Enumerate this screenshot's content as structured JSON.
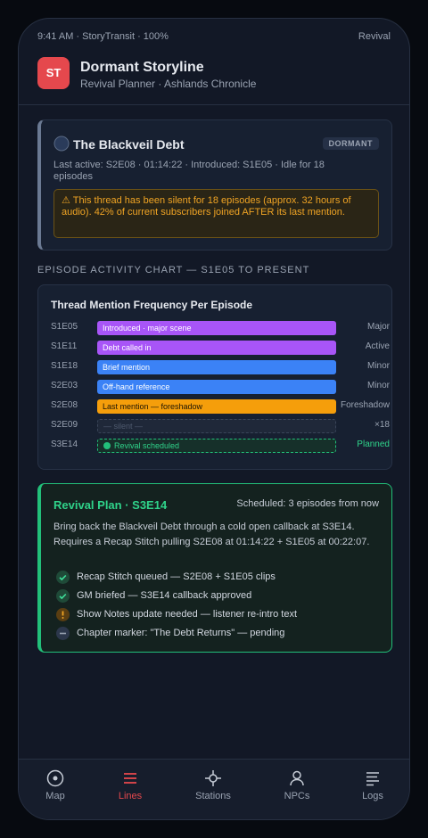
{
  "status_bar": {
    "left": "9:41 AM · StoryTransit · 100%",
    "right": "Revival"
  },
  "header": {
    "logo": "ST",
    "title": "Dormant Storyline",
    "subtitle": "Revival Planner · Ashlands Chronicle"
  },
  "thread_card": {
    "title": "The Blackveil Debt",
    "badge": "DORMANT",
    "meta": "Last active: S2E08 · 01:14:22 · Introduced: S1E05 · Idle for 18 episodes",
    "warning": "⚠ This thread has been silent for 18 episodes (approx. 32 hours of audio). 42% of current subscribers joined AFTER its last mention."
  },
  "section_label": "EPISODE ACTIVITY CHART — S1E05 TO PRESENT",
  "activity": {
    "title": "Thread Mention Frequency Per Episode",
    "rows": [
      {
        "episode": "S1E05",
        "bar": "Introduced · major scene",
        "tag": "Major"
      },
      {
        "episode": "S1E11",
        "bar": "Debt called in",
        "tag": "Active"
      },
      {
        "episode": "S1E18",
        "bar": "Brief mention",
        "tag": "Minor"
      },
      {
        "episode": "S2E03",
        "bar": "Off-hand reference",
        "tag": "Minor"
      },
      {
        "episode": "S2E08",
        "bar": "Last mention — foreshadow",
        "tag": "Foreshadow"
      },
      {
        "episode": "S2E09",
        "bar": "— silent —",
        "tag": "×18"
      },
      {
        "episode": "S3E14",
        "bar": "Revival scheduled",
        "tag": "Planned"
      }
    ]
  },
  "plan": {
    "title": "Revival Plan · S3E14",
    "scheduled": "Scheduled: 3 episodes from now",
    "body": "Bring back the Blackveil Debt through a cold open callback at S3E14. Requires a Recap Stitch pulling S2E08 at 01:14:22 + S1E05 at 00:22:07.",
    "checklist": [
      "Recap Stitch queued — S2E08 + S1E05 clips",
      "GM briefed — S3E14 callback approved",
      "Show Notes update needed — listener re-intro text",
      "Chapter marker: \"The Debt Returns\" — pending"
    ]
  },
  "nav": [
    "Map",
    "Lines",
    "Stations",
    "NPCs",
    "Logs"
  ]
}
